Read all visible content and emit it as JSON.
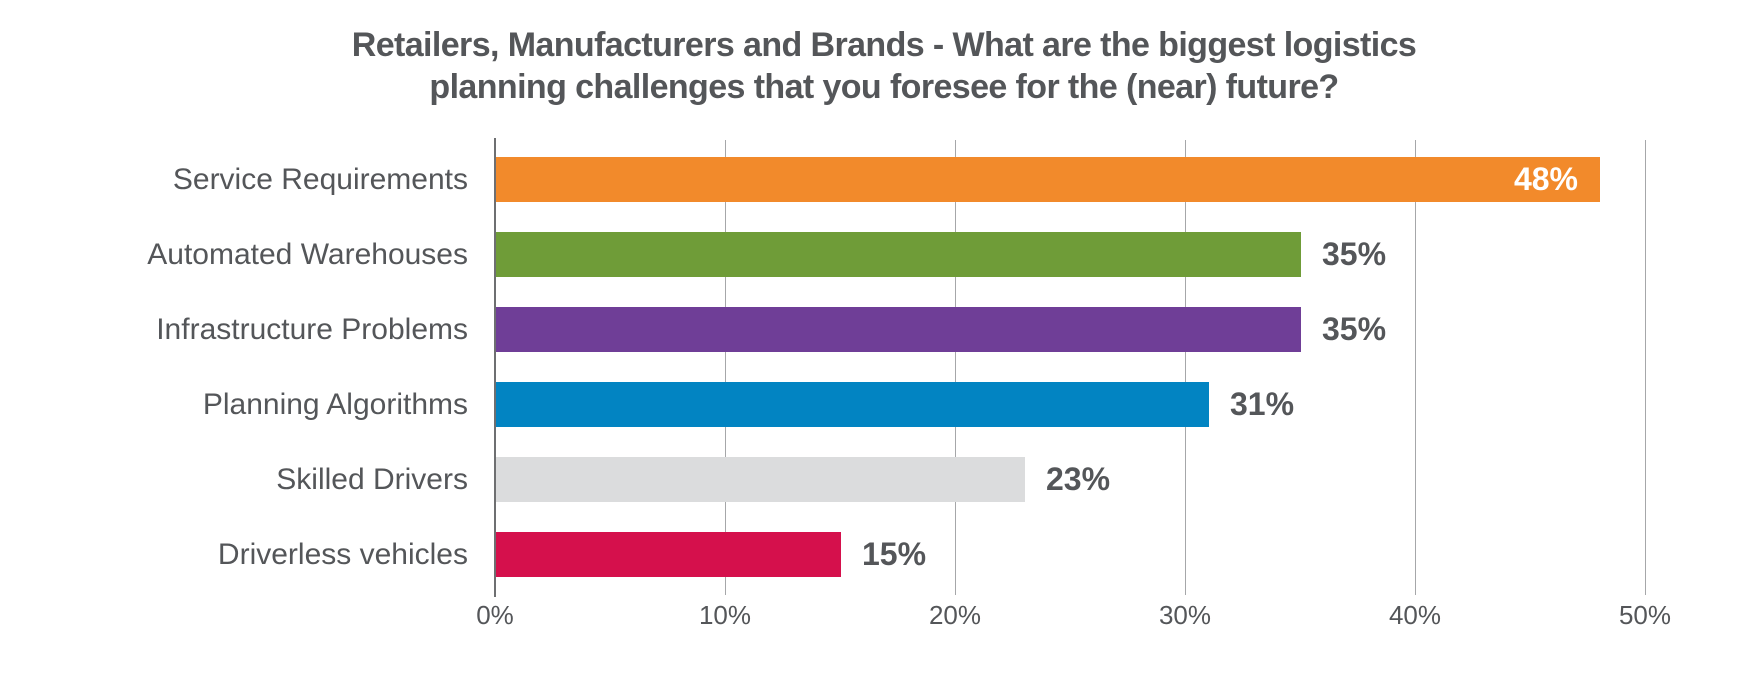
{
  "title": {
    "line1": "Retailers, Manufacturers and Brands - What are the biggest logistics",
    "line2": "planning challenges that you foresee for the (near) future?"
  },
  "chart_data": {
    "type": "bar",
    "orientation": "horizontal",
    "title": "Retailers, Manufacturers and Brands - What are the biggest logistics planning challenges that you foresee for the (near) future?",
    "categories": [
      "Service Requirements",
      "Automated Warehouses",
      "Infrastructure Problems",
      "Planning Algorithms",
      "Skilled Drivers",
      "Driverless vehicles"
    ],
    "values": [
      48,
      35,
      35,
      31,
      23,
      15
    ],
    "value_labels": [
      "48%",
      "35%",
      "35%",
      "31%",
      "23%",
      "15%"
    ],
    "bar_colors": [
      "#F28A2B",
      "#6F9C38",
      "#6F3E97",
      "#0284C2",
      "#DBDCDD",
      "#D5104C"
    ],
    "value_label_inside": [
      true,
      false,
      false,
      false,
      false,
      false
    ],
    "xlabel": "",
    "ylabel": "",
    "xlim": [
      0,
      50
    ],
    "x_ticks": [
      "0%",
      "10%",
      "20%",
      "30%",
      "40%",
      "50%"
    ],
    "x_tick_values": [
      0,
      10,
      20,
      30,
      40,
      50
    ],
    "grid": true,
    "legend": false
  },
  "colors": {
    "text": "#545659",
    "gridline": "#A6A7A9",
    "axis_line": "#6E6F71",
    "inside_value_label": "#FFFFFF",
    "background": "#FFFFFF"
  }
}
